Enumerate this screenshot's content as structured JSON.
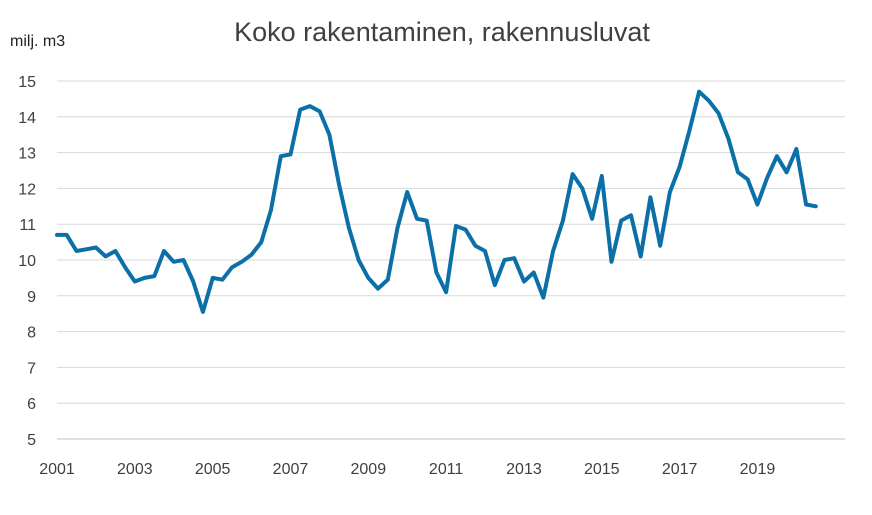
{
  "chart_data": {
    "type": "line",
    "title": "Koko rakentaminen, rakennusluvat",
    "ylabel": "milj. m3",
    "xlabel": "",
    "ylim": [
      5,
      15
    ],
    "yticks": [
      5,
      6,
      7,
      8,
      9,
      10,
      11,
      12,
      13,
      14,
      15
    ],
    "xticks": [
      "2001",
      "2003",
      "2005",
      "2007",
      "2009",
      "2011",
      "2013",
      "2015",
      "2017",
      "2019"
    ],
    "xlim": [
      2001,
      2021.25
    ],
    "grid": true,
    "legend": "none",
    "line_color": "#0b6fa8",
    "series": [
      {
        "x": [
          2001.0,
          2001.25,
          2001.5,
          2001.75,
          2002.0,
          2002.25,
          2002.5,
          2002.75,
          2003.0,
          2003.25,
          2003.5,
          2003.75,
          2004.0,
          2004.25,
          2004.5,
          2004.75,
          2005.0,
          2005.25,
          2005.5,
          2005.75,
          2006.0,
          2006.25,
          2006.5,
          2006.75,
          2007.0,
          2007.25,
          2007.5,
          2007.75,
          2008.0,
          2008.25,
          2008.5,
          2008.75,
          2009.0,
          2009.25,
          2009.5,
          2009.75,
          2010.0,
          2010.25,
          2010.5,
          2010.75,
          2011.0,
          2011.25,
          2011.5,
          2011.75,
          2012.0,
          2012.25,
          2012.5,
          2012.75,
          2013.0,
          2013.25,
          2013.5,
          2013.75,
          2014.0,
          2014.25,
          2014.5,
          2014.75,
          2015.0,
          2015.25,
          2015.5,
          2015.75,
          2016.0,
          2016.25,
          2016.5,
          2016.75,
          2017.0,
          2017.25,
          2017.5,
          2017.75,
          2018.0,
          2018.25,
          2018.5,
          2018.75,
          2019.0,
          2019.25,
          2019.5,
          2019.75,
          2020.0,
          2020.25,
          2020.5
        ],
        "values": [
          10.7,
          10.7,
          10.25,
          10.3,
          10.35,
          10.1,
          10.25,
          9.8,
          9.4,
          9.5,
          9.55,
          10.25,
          9.95,
          10.0,
          9.4,
          8.55,
          9.5,
          9.45,
          9.8,
          9.95,
          10.15,
          10.5,
          11.4,
          12.9,
          12.95,
          14.2,
          14.3,
          14.15,
          13.5,
          12.1,
          10.9,
          10.0,
          9.5,
          9.2,
          9.45,
          10.9,
          11.9,
          11.15,
          11.1,
          9.65,
          9.1,
          10.95,
          10.85,
          10.4,
          10.25,
          9.3,
          10.0,
          10.05,
          9.4,
          9.65,
          8.95,
          10.25,
          11.1,
          12.4,
          12.0,
          11.15,
          12.35,
          9.95,
          11.1,
          11.25,
          10.1,
          11.75,
          10.4,
          11.9,
          12.6,
          13.6,
          14.7,
          14.45,
          14.1,
          13.4,
          12.45,
          12.25,
          11.55,
          12.3,
          12.9,
          12.45,
          13.1,
          11.55,
          11.5
        ]
      }
    ]
  }
}
